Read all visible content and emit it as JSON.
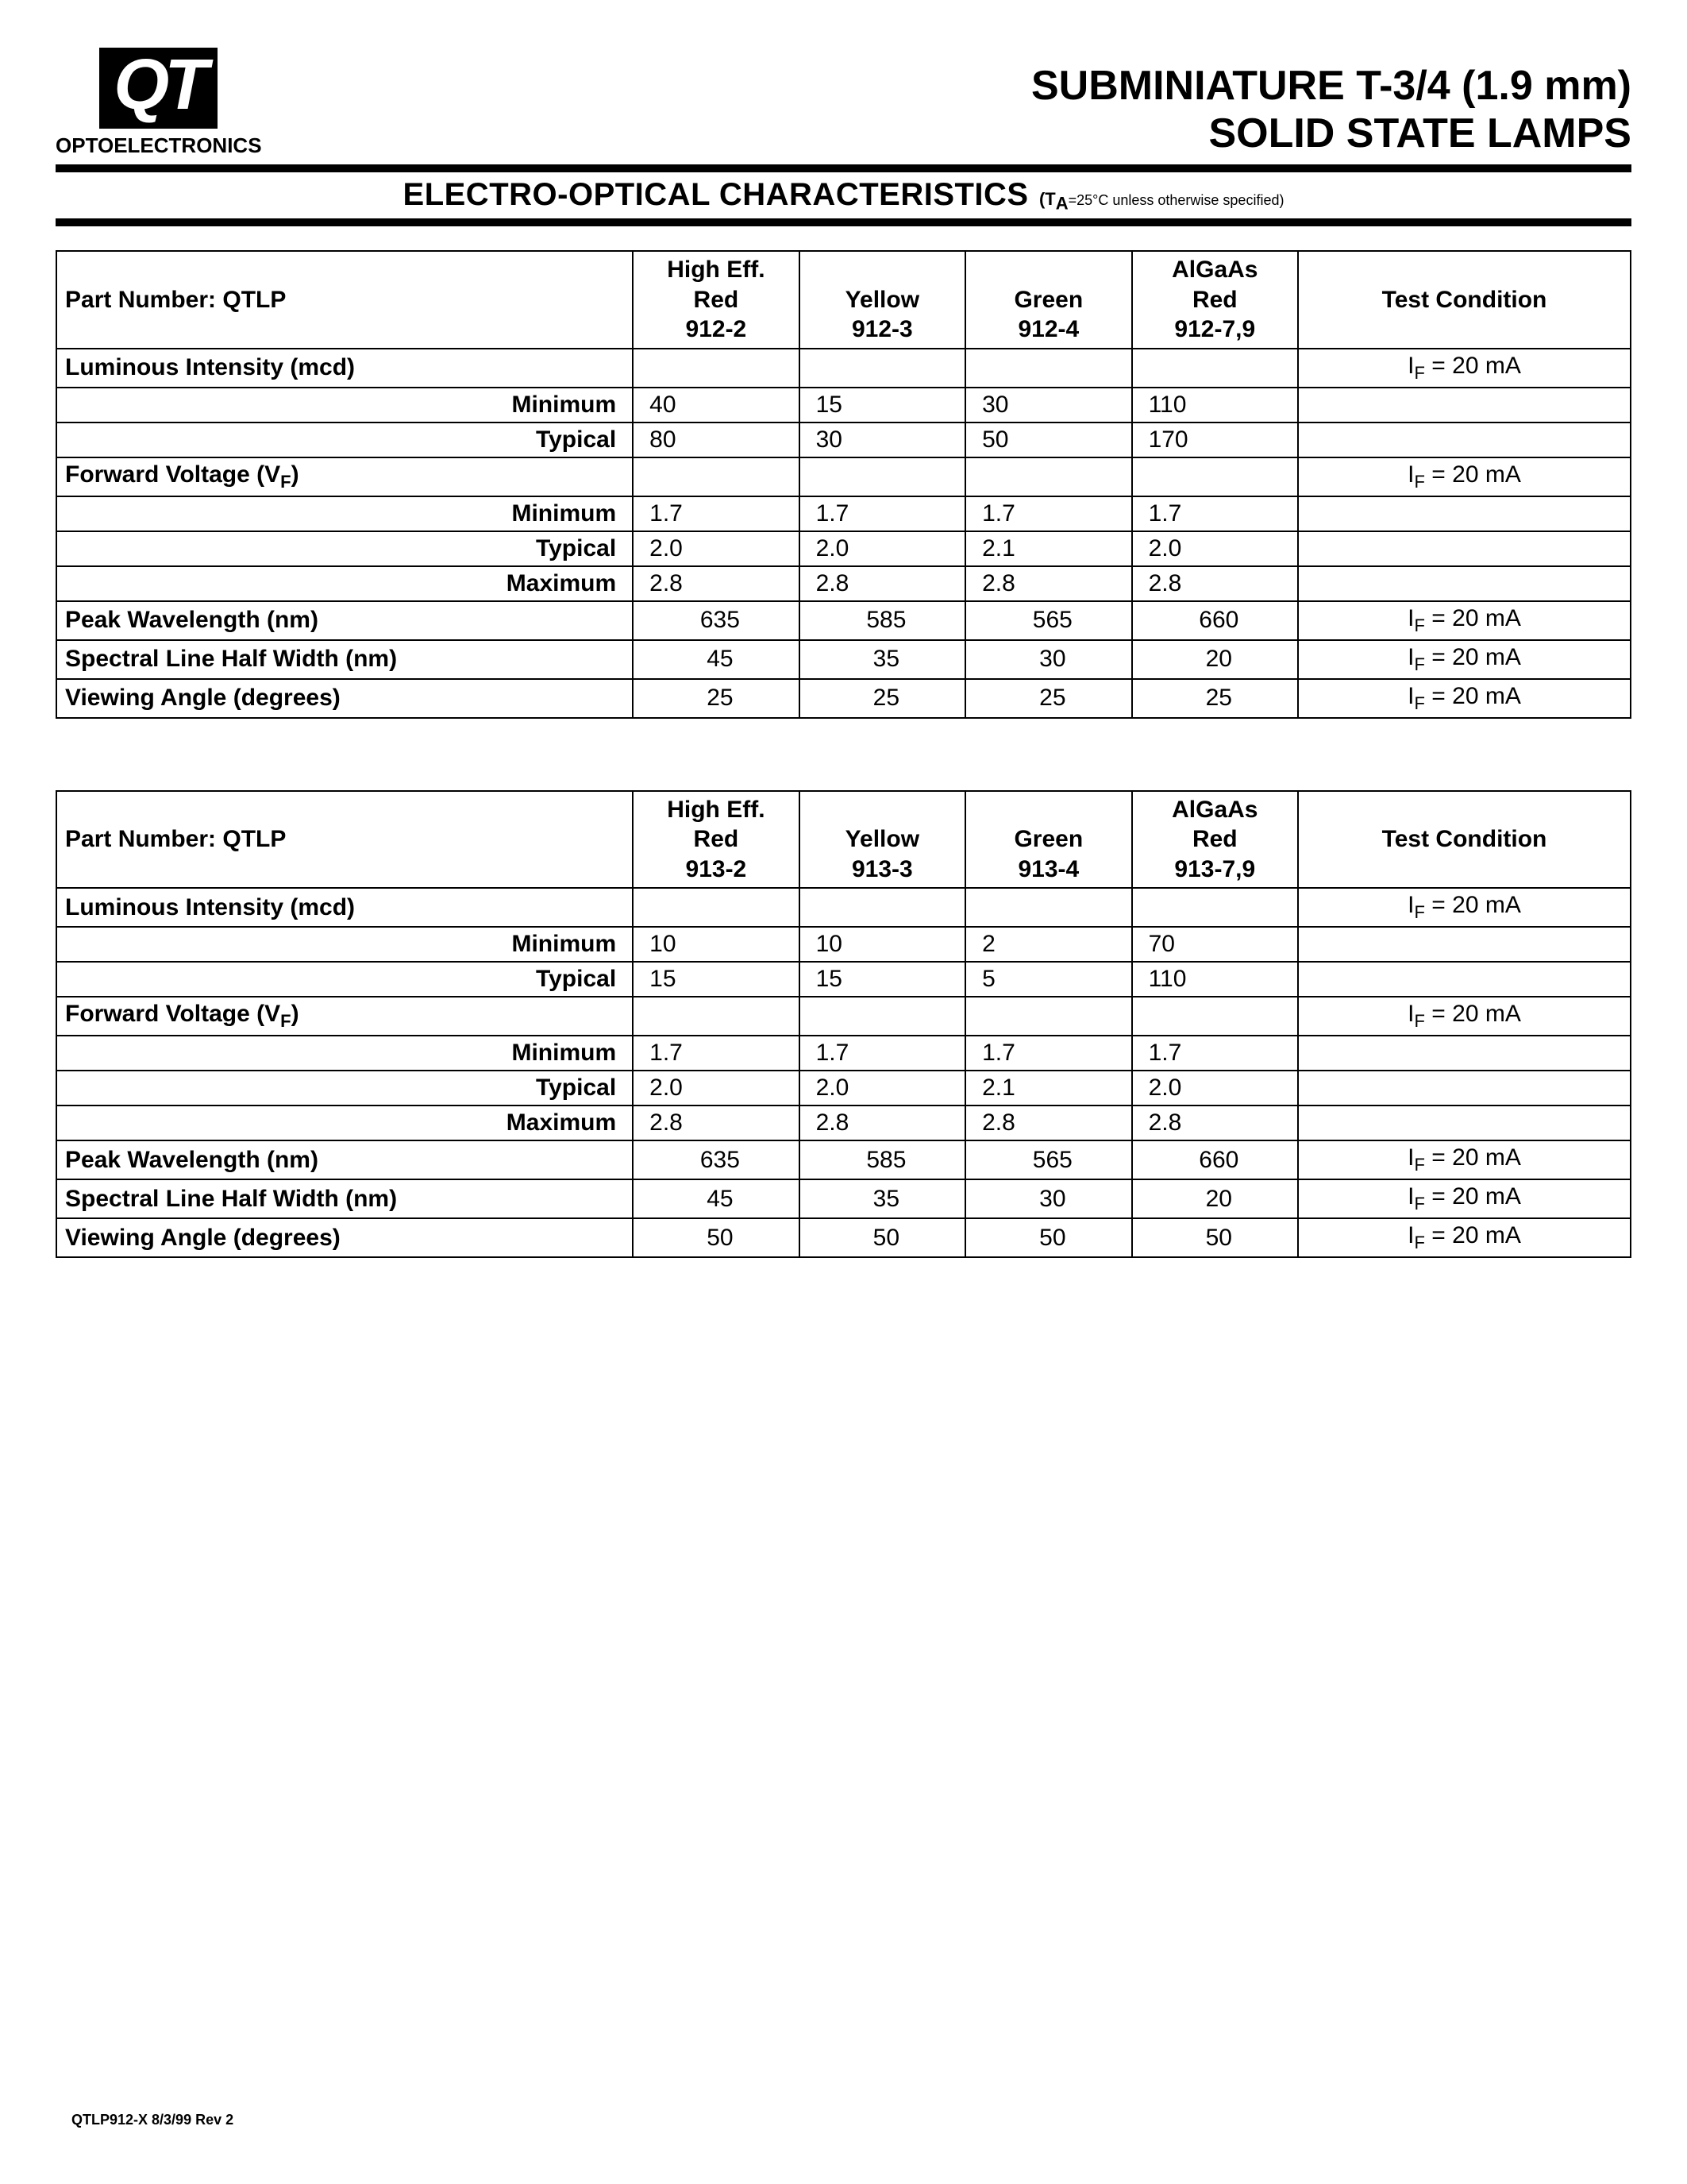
{
  "logo": {
    "text": "QT",
    "subtext": "OPTOELECTRONICS"
  },
  "title": {
    "line1": "SUBMINIATURE T-3/4  (1.9 mm)",
    "line2": "SOLID STATE LAMPS"
  },
  "section": {
    "title": "ELECTRO-OPTICAL  CHARACTERISTICS",
    "note_prefix": "(T",
    "note_sub": "A",
    "note_rest": "=25°C unless otherwise specified)"
  },
  "tables": [
    {
      "part_label": "Part Number:  ",
      "part_bold": "QTLP",
      "columns": [
        {
          "l1": "High Eff.",
          "l2": "Red",
          "l3": "912-2"
        },
        {
          "l1": "",
          "l2": "Yellow",
          "l3": "912-3"
        },
        {
          "l1": "",
          "l2": "Green",
          "l3": "912-4"
        },
        {
          "l1": "AlGaAs",
          "l2": "Red",
          "l3": "912-7,9"
        }
      ],
      "test_label": "Test Condition",
      "rows": [
        {
          "type": "section",
          "label": "Luminous Intensity (mcd)",
          "v": [
            "",
            "",
            "",
            ""
          ],
          "test": "IF20"
        },
        {
          "type": "sub",
          "label": "Minimum",
          "v": [
            "40",
            "15",
            "30",
            "110"
          ],
          "test": ""
        },
        {
          "type": "sub",
          "label": "Typical",
          "v": [
            "80",
            "30",
            "50",
            "170"
          ],
          "test": ""
        },
        {
          "type": "section",
          "label": "Forward Voltage (V_F)",
          "v": [
            "",
            "",
            "",
            ""
          ],
          "test": "IF20"
        },
        {
          "type": "sub",
          "label": "Minimum",
          "v": [
            "1.7",
            "1.7",
            "1.7",
            "1.7"
          ],
          "test": ""
        },
        {
          "type": "sub",
          "label": "Typical",
          "v": [
            "2.0",
            "2.0",
            "2.1",
            "2.0"
          ],
          "test": ""
        },
        {
          "type": "sub",
          "label": "Maximum",
          "v": [
            "2.8",
            "2.8",
            "2.8",
            "2.8"
          ],
          "test": ""
        },
        {
          "type": "param",
          "label": "Peak Wavelength (nm)",
          "v": [
            "635",
            "585",
            "565",
            "660"
          ],
          "test": "IF20"
        },
        {
          "type": "param",
          "label": "Spectral Line Half Width (nm)",
          "v": [
            "45",
            "35",
            "30",
            "20"
          ],
          "test": "IF20"
        },
        {
          "type": "param",
          "label": "Viewing Angle (degrees)",
          "v": [
            "25",
            "25",
            "25",
            "25"
          ],
          "test": "IF20"
        }
      ]
    },
    {
      "part_label": "Part Number:  ",
      "part_bold": "QTLP",
      "columns": [
        {
          "l1": "High Eff.",
          "l2": "Red",
          "l3": "913-2"
        },
        {
          "l1": "",
          "l2": "Yellow",
          "l3": "913-3"
        },
        {
          "l1": "",
          "l2": "Green",
          "l3": "913-4"
        },
        {
          "l1": "AlGaAs",
          "l2": "Red",
          "l3": "913-7,9"
        }
      ],
      "test_label": "Test Condition",
      "rows": [
        {
          "type": "section",
          "label": "Luminous Intensity (mcd)",
          "v": [
            "",
            "",
            "",
            ""
          ],
          "test": "IF20"
        },
        {
          "type": "sub",
          "label": "Minimum",
          "v": [
            "10",
            "10",
            "2",
            "70"
          ],
          "test": ""
        },
        {
          "type": "sub",
          "label": "Typical",
          "v": [
            "15",
            "15",
            "5",
            "110"
          ],
          "test": ""
        },
        {
          "type": "section",
          "label": "Forward Voltage (V_F)",
          "v": [
            "",
            "",
            "",
            ""
          ],
          "test": "IF20"
        },
        {
          "type": "sub",
          "label": "Minimum",
          "v": [
            "1.7",
            "1.7",
            "1.7",
            "1.7"
          ],
          "test": ""
        },
        {
          "type": "sub",
          "label": "Typical",
          "v": [
            "2.0",
            "2.0",
            "2.1",
            "2.0"
          ],
          "test": ""
        },
        {
          "type": "sub",
          "label": "Maximum",
          "v": [
            "2.8",
            "2.8",
            "2.8",
            "2.8"
          ],
          "test": ""
        },
        {
          "type": "param",
          "label": "Peak Wavelength (nm)",
          "v": [
            "635",
            "585",
            "565",
            "660"
          ],
          "test": "IF20"
        },
        {
          "type": "param",
          "label": "Spectral Line Half Width (nm)",
          "v": [
            "45",
            "35",
            "30",
            "20"
          ],
          "test": "IF20"
        },
        {
          "type": "param",
          "label": "Viewing Angle (degrees)",
          "v": [
            "50",
            "50",
            "50",
            "50"
          ],
          "test": "IF20"
        }
      ]
    }
  ],
  "footer": "QTLP912-X   8/3/99   Rev 2"
}
